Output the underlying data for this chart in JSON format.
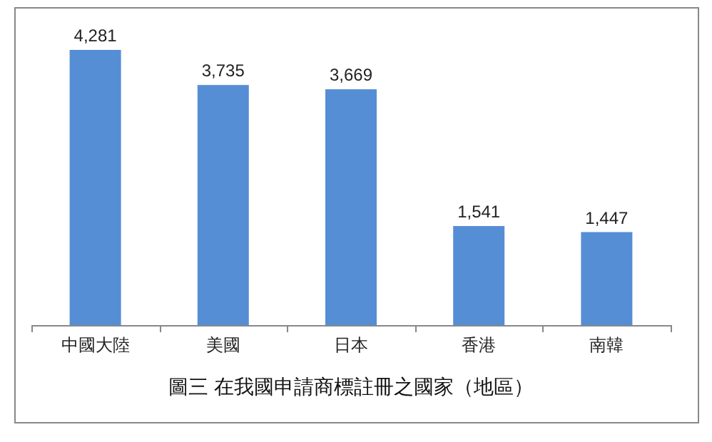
{
  "chart_data": {
    "type": "bar",
    "title": "圖三  在我國申請商標註冊之國家（地區）",
    "categories": [
      "中國大陸",
      "美國",
      "日本",
      "香港",
      "南韓"
    ],
    "values": [
      4281,
      3735,
      3669,
      1541,
      1447
    ],
    "value_labels": [
      "4,281",
      "3,735",
      "3,669",
      "1,541",
      "1,447"
    ],
    "color": "#558ed5"
  }
}
